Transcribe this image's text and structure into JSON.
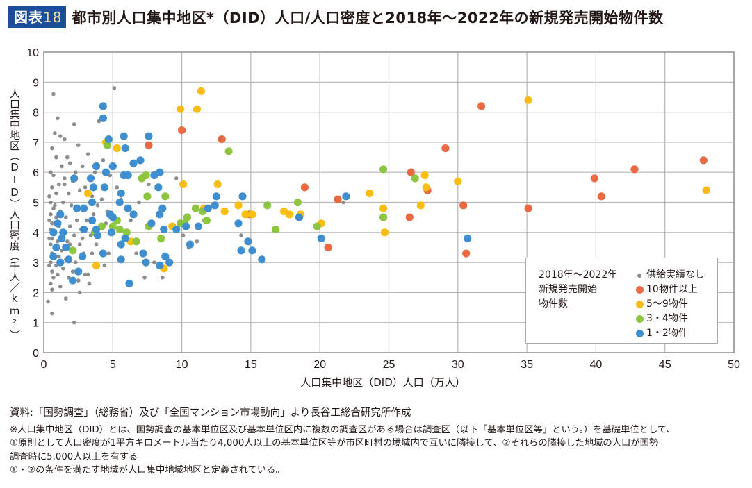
{
  "header": {
    "badge_label": "図表",
    "badge_number": "18",
    "title": "都市別人口集中地区*（DID）人口/人口密度と2018年～2022年の新規発売開始物件数"
  },
  "colors": {
    "badge_bg": "#1a4e96",
    "grid": "#b5b5b5",
    "none": "#8c8c8c",
    "ten_plus": "#ea6a44",
    "five_nine": "#fbbe10",
    "three_four": "#8cc63e",
    "one_two": "#3f8fd0"
  },
  "chart_data": {
    "type": "scatter",
    "title": "都市別人口集中地区*（DID）人口/人口密度と2018年～2022年の新規発売開始物件数",
    "xlabel": "人口集中地区（DID）人口（万人）",
    "ylabel": "人口集中地区（DID）人口密度（千人／km²）",
    "xlim": [
      0,
      50
    ],
    "ylim": [
      0,
      10
    ],
    "xticks": [
      "0",
      "5",
      "10",
      "15",
      "20",
      "25",
      "30",
      "35",
      "40",
      "45",
      "50"
    ],
    "yticks": [
      "0",
      "1",
      "2",
      "3",
      "4",
      "5",
      "6",
      "7",
      "8",
      "9",
      "10"
    ],
    "grid": true,
    "legend": {
      "position": "bottom-right",
      "title": "2018年～2022年\n新規発売開始\n物件数"
    },
    "series": [
      {
        "name": "供給実績なし",
        "color_key": "none",
        "small": true,
        "points": [
          [
            0.7,
            8.6
          ],
          [
            5.1,
            8.8
          ],
          [
            1.0,
            7.8
          ],
          [
            4.0,
            7.7
          ],
          [
            2.2,
            7.6
          ],
          [
            0.8,
            7.3
          ],
          [
            1.2,
            7.2
          ],
          [
            2.5,
            6.9
          ],
          [
            1.5,
            7.1
          ],
          [
            0.6,
            6.8
          ],
          [
            0.9,
            6.5
          ],
          [
            1.7,
            6.5
          ],
          [
            2.8,
            6.2
          ],
          [
            0.5,
            6.0
          ],
          [
            1.9,
            6.3
          ],
          [
            1.3,
            6.2
          ],
          [
            3.2,
            6.6
          ],
          [
            3.7,
            6.0
          ],
          [
            2.3,
            6.0
          ],
          [
            4.3,
            6.4
          ],
          [
            0.7,
            5.9
          ],
          [
            1.5,
            5.8
          ],
          [
            2.1,
            5.7
          ],
          [
            3.0,
            5.5
          ],
          [
            4.8,
            5.9
          ],
          [
            1.1,
            5.6
          ],
          [
            0.6,
            5.5
          ],
          [
            2.6,
            5.4
          ],
          [
            0.9,
            5.3
          ],
          [
            1.8,
            5.3
          ],
          [
            3.5,
            5.2
          ],
          [
            4.2,
            5.1
          ],
          [
            5.6,
            5.1
          ],
          [
            0.5,
            5.0
          ],
          [
            1.4,
            5.0
          ],
          [
            2.0,
            4.9
          ],
          [
            2.9,
            4.8
          ],
          [
            0.7,
            4.8
          ],
          [
            1.2,
            4.7
          ],
          [
            3.9,
            4.9
          ],
          [
            0.5,
            4.6
          ],
          [
            0.9,
            4.5
          ],
          [
            1.6,
            4.5
          ],
          [
            2.4,
            4.4
          ],
          [
            3.1,
            4.4
          ],
          [
            4.5,
            4.3
          ],
          [
            0.6,
            4.3
          ],
          [
            1.1,
            4.2
          ],
          [
            1.9,
            4.2
          ],
          [
            2.7,
            4.1
          ],
          [
            0.5,
            4.1
          ],
          [
            0.8,
            4.0
          ],
          [
            1.4,
            3.9
          ],
          [
            2.2,
            3.9
          ],
          [
            3.4,
            3.9
          ],
          [
            0.6,
            3.8
          ],
          [
            1.0,
            3.7
          ],
          [
            1.7,
            3.7
          ],
          [
            2.6,
            3.6
          ],
          [
            3.8,
            3.6
          ],
          [
            0.5,
            3.6
          ],
          [
            0.8,
            3.5
          ],
          [
            1.3,
            3.4
          ],
          [
            2.0,
            3.4
          ],
          [
            2.9,
            3.3
          ],
          [
            0.6,
            3.3
          ],
          [
            1.1,
            3.2
          ],
          [
            1.6,
            3.1
          ],
          [
            2.3,
            3.0
          ],
          [
            0.5,
            3.0
          ],
          [
            0.9,
            2.9
          ],
          [
            1.4,
            2.8
          ],
          [
            2.1,
            2.7
          ],
          [
            0.6,
            2.7
          ],
          [
            1.0,
            2.6
          ],
          [
            0.7,
            2.5
          ],
          [
            1.8,
            2.5
          ],
          [
            2.5,
            2.4
          ],
          [
            0.5,
            2.3
          ],
          [
            1.2,
            2.2
          ],
          [
            0.6,
            2.1
          ],
          [
            1.6,
            1.8
          ],
          [
            0.3,
            1.7
          ],
          [
            0.6,
            1.3
          ],
          [
            2.2,
            1.0
          ],
          [
            2.6,
            2.0
          ],
          [
            3.0,
            2.6
          ],
          [
            3.3,
            2.3
          ],
          [
            0.4,
            2.9
          ],
          [
            0.4,
            3.8
          ],
          [
            0.4,
            4.4
          ],
          [
            0.4,
            5.2
          ],
          [
            4.7,
            3.3
          ],
          [
            5.0,
            4.0
          ],
          [
            5.8,
            3.8
          ],
          [
            6.3,
            4.4
          ],
          [
            6.9,
            5.0
          ],
          [
            7.6,
            5.6
          ],
          [
            5.3,
            5.5
          ],
          [
            3.6,
            4.6
          ],
          [
            4.6,
            4.7
          ],
          [
            7.3,
            2.5
          ],
          [
            8.6,
            2.5
          ],
          [
            8.0,
            3.0
          ],
          [
            6.7,
            3.3
          ],
          [
            9.6,
            5.8
          ],
          [
            10.1,
            3.9
          ],
          [
            11.1,
            3.7
          ],
          [
            11.6,
            4.4
          ],
          [
            10.5,
            3.5
          ],
          [
            14.3,
            3.9
          ],
          [
            15.0,
            3.4
          ],
          [
            21.7,
            5.0
          ],
          [
            3.2,
            2.6
          ],
          [
            4.4,
            2.9
          ],
          [
            1.9,
            3.6
          ],
          [
            2.8,
            3.8
          ],
          [
            3.5,
            3.3
          ],
          [
            0.8,
            4.9
          ],
          [
            1.5,
            5.6
          ]
        ]
      },
      {
        "name": "10物件以上",
        "color_key": "ten_plus",
        "small": false,
        "points": [
          [
            7.6,
            6.9
          ],
          [
            10.0,
            7.4
          ],
          [
            12.9,
            7.1
          ],
          [
            31.7,
            8.2
          ],
          [
            29.1,
            6.8
          ],
          [
            26.6,
            6.0
          ],
          [
            27.8,
            5.4
          ],
          [
            18.9,
            5.5
          ],
          [
            21.3,
            5.1
          ],
          [
            30.4,
            4.9
          ],
          [
            26.5,
            4.5
          ],
          [
            35.1,
            4.8
          ],
          [
            39.9,
            5.8
          ],
          [
            40.4,
            5.2
          ],
          [
            42.8,
            6.1
          ],
          [
            47.8,
            6.4
          ],
          [
            30.6,
            3.3
          ],
          [
            20.6,
            3.5
          ],
          [
            14.9,
            4.6
          ]
        ]
      },
      {
        "name": "5～9物件",
        "color_key": "five_nine",
        "small": false,
        "points": [
          [
            11.4,
            8.7
          ],
          [
            9.9,
            8.1
          ],
          [
            11.1,
            8.1
          ],
          [
            10.1,
            5.6
          ],
          [
            12.6,
            5.6
          ],
          [
            13.1,
            4.7
          ],
          [
            14.1,
            4.9
          ],
          [
            14.6,
            4.6
          ],
          [
            15.1,
            4.6
          ],
          [
            17.4,
            4.7
          ],
          [
            17.8,
            4.6
          ],
          [
            18.6,
            4.6
          ],
          [
            20.1,
            4.3
          ],
          [
            23.6,
            5.3
          ],
          [
            24.6,
            4.8
          ],
          [
            24.7,
            4.0
          ],
          [
            27.6,
            5.9
          ],
          [
            27.7,
            5.5
          ],
          [
            27.3,
            4.9
          ],
          [
            30.0,
            5.7
          ],
          [
            35.1,
            8.4
          ],
          [
            48.0,
            5.4
          ],
          [
            4.5,
            7.0
          ],
          [
            5.3,
            6.8
          ],
          [
            3.2,
            5.3
          ],
          [
            3.8,
            2.9
          ],
          [
            6.3,
            3.7
          ],
          [
            9.3,
            4.2
          ],
          [
            8.7,
            2.8
          ],
          [
            11.6,
            4.8
          ]
        ]
      },
      {
        "name": "3・4物件",
        "color_key": "three_four",
        "small": false,
        "points": [
          [
            4.6,
            6.9
          ],
          [
            13.4,
            6.7
          ],
          [
            24.6,
            6.1
          ],
          [
            26.9,
            5.8
          ],
          [
            16.2,
            4.9
          ],
          [
            18.4,
            5.0
          ],
          [
            19.8,
            4.2
          ],
          [
            24.6,
            4.5
          ],
          [
            16.8,
            4.1
          ],
          [
            7.4,
            5.9
          ],
          [
            7.1,
            5.8
          ],
          [
            8.8,
            5.2
          ],
          [
            7.5,
            5.2
          ],
          [
            9.9,
            4.3
          ],
          [
            10.4,
            4.5
          ],
          [
            11.0,
            4.8
          ],
          [
            11.5,
            4.7
          ],
          [
            11.8,
            4.4
          ],
          [
            10.2,
            4.3
          ],
          [
            7.6,
            4.2
          ],
          [
            5.3,
            4.4
          ],
          [
            5.0,
            4.2
          ],
          [
            6.0,
            4.0
          ],
          [
            6.7,
            3.7
          ],
          [
            4.2,
            4.2
          ],
          [
            5.5,
            4.1
          ],
          [
            2.1,
            3.4
          ],
          [
            8.5,
            3.8
          ],
          [
            3.7,
            4.0
          ]
        ]
      },
      {
        "name": "1・2物件",
        "color_key": "one_two",
        "small": false,
        "points": [
          [
            4.3,
            8.2
          ],
          [
            4.3,
            7.8
          ],
          [
            5.8,
            7.2
          ],
          [
            4.7,
            7.1
          ],
          [
            7.6,
            7.2
          ],
          [
            5.9,
            6.8
          ],
          [
            5.0,
            6.2
          ],
          [
            6.5,
            6.3
          ],
          [
            7.0,
            6.4
          ],
          [
            8.4,
            6.0
          ],
          [
            3.8,
            6.2
          ],
          [
            4.5,
            6.0
          ],
          [
            3.4,
            5.8
          ],
          [
            5.8,
            5.9
          ],
          [
            6.1,
            5.9
          ],
          [
            8.0,
            5.9
          ],
          [
            8.3,
            5.5
          ],
          [
            3.6,
            5.5
          ],
          [
            4.4,
            5.5
          ],
          [
            5.6,
            5.3
          ],
          [
            2.2,
            5.8
          ],
          [
            3.5,
            5.0
          ],
          [
            5.5,
            5.0
          ],
          [
            6.1,
            4.8
          ],
          [
            8.6,
            4.8
          ],
          [
            2.9,
            4.8
          ],
          [
            2.4,
            4.8
          ],
          [
            4.8,
            4.6
          ],
          [
            8.4,
            4.6
          ],
          [
            1.2,
            4.6
          ],
          [
            3.5,
            4.4
          ],
          [
            5.0,
            4.5
          ],
          [
            7.8,
            4.3
          ],
          [
            8.7,
            4.1
          ],
          [
            2.9,
            4.1
          ],
          [
            3.8,
            4.1
          ],
          [
            1.0,
            4.3
          ],
          [
            1.4,
            4.0
          ],
          [
            0.7,
            4.0
          ],
          [
            1.3,
            3.8
          ],
          [
            3.9,
            3.9
          ],
          [
            4.9,
            4.0
          ],
          [
            5.9,
            3.8
          ],
          [
            5.6,
            3.6
          ],
          [
            0.9,
            3.5
          ],
          [
            1.6,
            3.5
          ],
          [
            4.3,
            3.3
          ],
          [
            2.8,
            3.2
          ],
          [
            0.7,
            3.2
          ],
          [
            1.2,
            3.0
          ],
          [
            5.6,
            3.1
          ],
          [
            7.4,
            3.0
          ],
          [
            8.4,
            2.9
          ],
          [
            9.1,
            3.0
          ],
          [
            2.1,
            2.4
          ],
          [
            1.8,
            3.1
          ],
          [
            6.2,
            2.3
          ],
          [
            2.5,
            2.7
          ],
          [
            8.8,
            3.2
          ],
          [
            7.2,
            3.3
          ],
          [
            12.4,
            4.9
          ],
          [
            14.1,
            4.3
          ],
          [
            14.4,
            5.2
          ],
          [
            11.2,
            4.2
          ],
          [
            9.6,
            4.1
          ],
          [
            10.6,
            3.6
          ],
          [
            14.3,
            3.4
          ],
          [
            15.1,
            3.4
          ],
          [
            14.8,
            3.7
          ],
          [
            15.8,
            3.1
          ],
          [
            11.9,
            4.8
          ],
          [
            12.5,
            5.2
          ],
          [
            18.5,
            4.5
          ],
          [
            20.1,
            3.8
          ],
          [
            21.9,
            5.2
          ],
          [
            30.7,
            3.8
          ],
          [
            6.5,
            4.6
          ],
          [
            10.3,
            4.2
          ]
        ]
      }
    ]
  },
  "notes": {
    "source": "資料:「国勢調査」（総務省）及び「全国マンション市場動向」より長谷工総合研究所作成",
    "line1": "※人口集中地区（DID）とは、国勢調査の基本単位区及び基本単位区内に複数の調査区がある場合は調査区（以下「基本単位区等」という。）を基礎単位として、",
    "line2": "①原則として人口密度が1平方キロメートル当たり4,000人以上の基本単位区等が市区町村の境域内で互いに隣接して、②それらの隣接した地域の人口が国勢",
    "line3": "調査時に5,000人以上を有する",
    "line4": "①・②の条件を満たす地域が人口集中地域地区と定義されている。"
  }
}
